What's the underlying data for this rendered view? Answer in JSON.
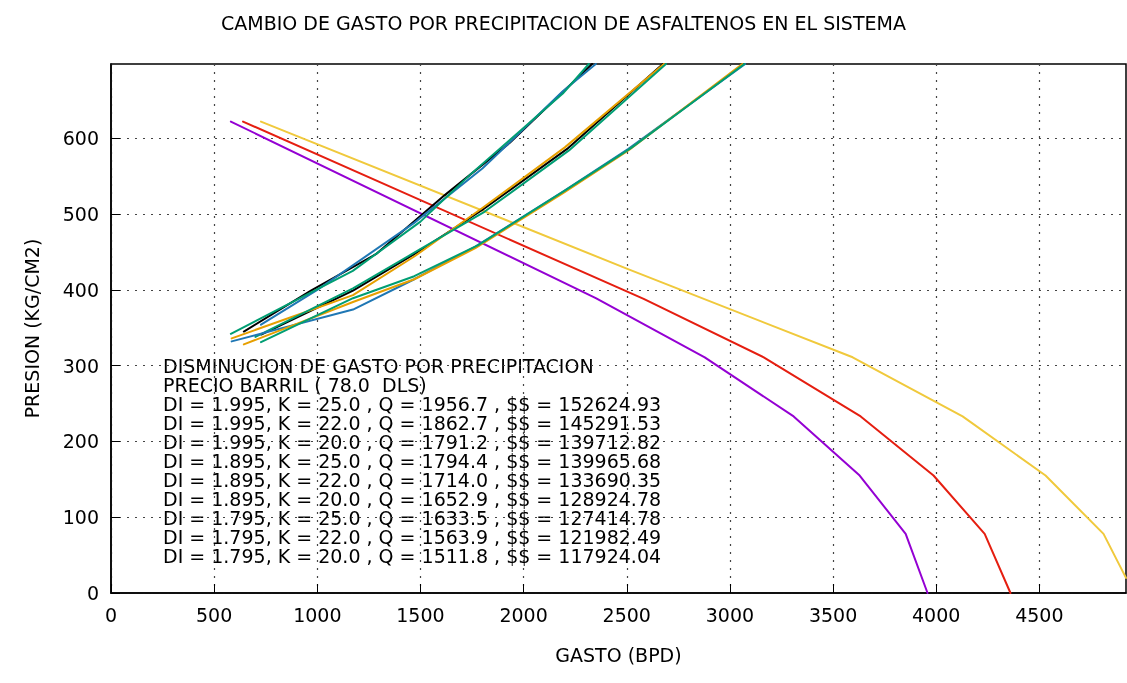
{
  "chart_data": {
    "type": "line",
    "title": "CAMBIO DE GASTO POR PRECIPITACION DE ASFALTENOS EN EL SISTEMA",
    "xlabel": "GASTO (BPD)",
    "ylabel": "PRESION (KG/CM2)",
    "xlim": [
      0,
      4920
    ],
    "ylim": [
      0,
      698
    ],
    "xticks": [
      0,
      500,
      1000,
      1500,
      2000,
      2500,
      3000,
      3500,
      4000,
      4500
    ],
    "yticks": [
      0,
      100,
      200,
      300,
      400,
      500,
      600
    ],
    "grid": true,
    "marker": "none",
    "line_style": "solid",
    "annotations": [
      "DISMINUCION DE GASTO POR PRECIPITACION",
      "PRECIO BARRIL ( 78.0  DLS)",
      "DI = 1.995, K = 25.0 , Q = 1956.7 , $$ = 152624.93",
      "DI = 1.995, K = 22.0 , Q = 1862.7 , $$ = 145291.53",
      "DI = 1.995, K = 20.0 , Q = 1791.2 , $$ = 139712.82",
      "DI = 1.895, K = 25.0 , Q = 1794.4 , $$ = 139965.68",
      "DI = 1.895, K = 22.0 , Q = 1714.0 , $$ = 133690.35",
      "DI = 1.895, K = 20.0 , Q = 1652.9 , $$ = 128924.78",
      "DI = 1.795, K = 25.0 , Q = 1633.5 , $$ = 127414.78",
      "DI = 1.795, K = 22.0 , Q = 1563.9 , $$ = 121982.49",
      "DI = 1.795, K = 20.0 , Q = 1511.8 , $$ = 117924.04"
    ],
    "series": [
      {
        "color": "#9400d3",
        "x": [
          581,
          2350,
          2878,
          3309,
          3629,
          3852,
          3958
        ],
        "values": [
          622,
          389,
          311,
          233,
          155,
          78,
          0
        ]
      },
      {
        "color": "#e51e10",
        "x": [
          640,
          2582,
          3164,
          3634,
          3987,
          4235,
          4360
        ],
        "values": [
          622,
          388,
          311,
          233,
          155,
          78,
          0
        ]
      },
      {
        "color": "#f0c93c",
        "x": [
          727,
          2500,
          3595,
          4128,
          4530,
          4811,
          4920
        ],
        "values": [
          622,
          428,
          311,
          233,
          155,
          78,
          20
        ]
      },
      {
        "color": "#000000",
        "x": [
          644,
          969,
          1284,
          1618,
          1933,
          2332
        ],
        "values": [
          345,
          399,
          447,
          525,
          594,
          698
        ]
      },
      {
        "color": "#1f77b4",
        "x": [
          727,
          1000,
          1468,
          1800,
          2190,
          2350
        ],
        "values": [
          354,
          400,
          488,
          560,
          662,
          698
        ]
      },
      {
        "color": "#009e73",
        "x": [
          581,
          1172,
          1500,
          1749,
          2190,
          2316
        ],
        "values": [
          342,
          425,
          490,
          554,
          659,
          698
        ]
      },
      {
        "color": "#000000",
        "x": [
          728,
          1173,
          1470,
          1803,
          2211,
          2675
        ],
        "values": [
          341,
          399,
          447,
          506,
          586,
          698
        ]
      },
      {
        "color": "#e69f00",
        "x": [
          585,
          1173,
          1470,
          1800,
          2200,
          2680
        ],
        "values": [
          336,
          393,
          444,
          508,
          588,
          698
        ]
      },
      {
        "color": "#009e73",
        "x": [
          700,
          1173,
          1470,
          1810,
          2220,
          2690
        ],
        "values": [
          338,
          402,
          449,
          503,
          584,
          698
        ]
      },
      {
        "color": "#1f77b4",
        "x": [
          585,
          1173,
          1470,
          1766,
          2193,
          2508,
          3074
        ],
        "values": [
          332,
          374,
          414,
          457,
          530,
          586,
          698
        ]
      },
      {
        "color": "#e69f00",
        "x": [
          644,
          1173,
          1470,
          1766,
          2193,
          2508,
          3060
        ],
        "values": [
          328,
          384,
          414,
          455,
          528,
          584,
          698
        ]
      },
      {
        "color": "#009e73",
        "x": [
          727,
          1173,
          1470,
          1780,
          2200,
          2520,
          3070
        ],
        "values": [
          331,
          389,
          418,
          459,
          531,
          587,
          698
        ]
      }
    ]
  }
}
